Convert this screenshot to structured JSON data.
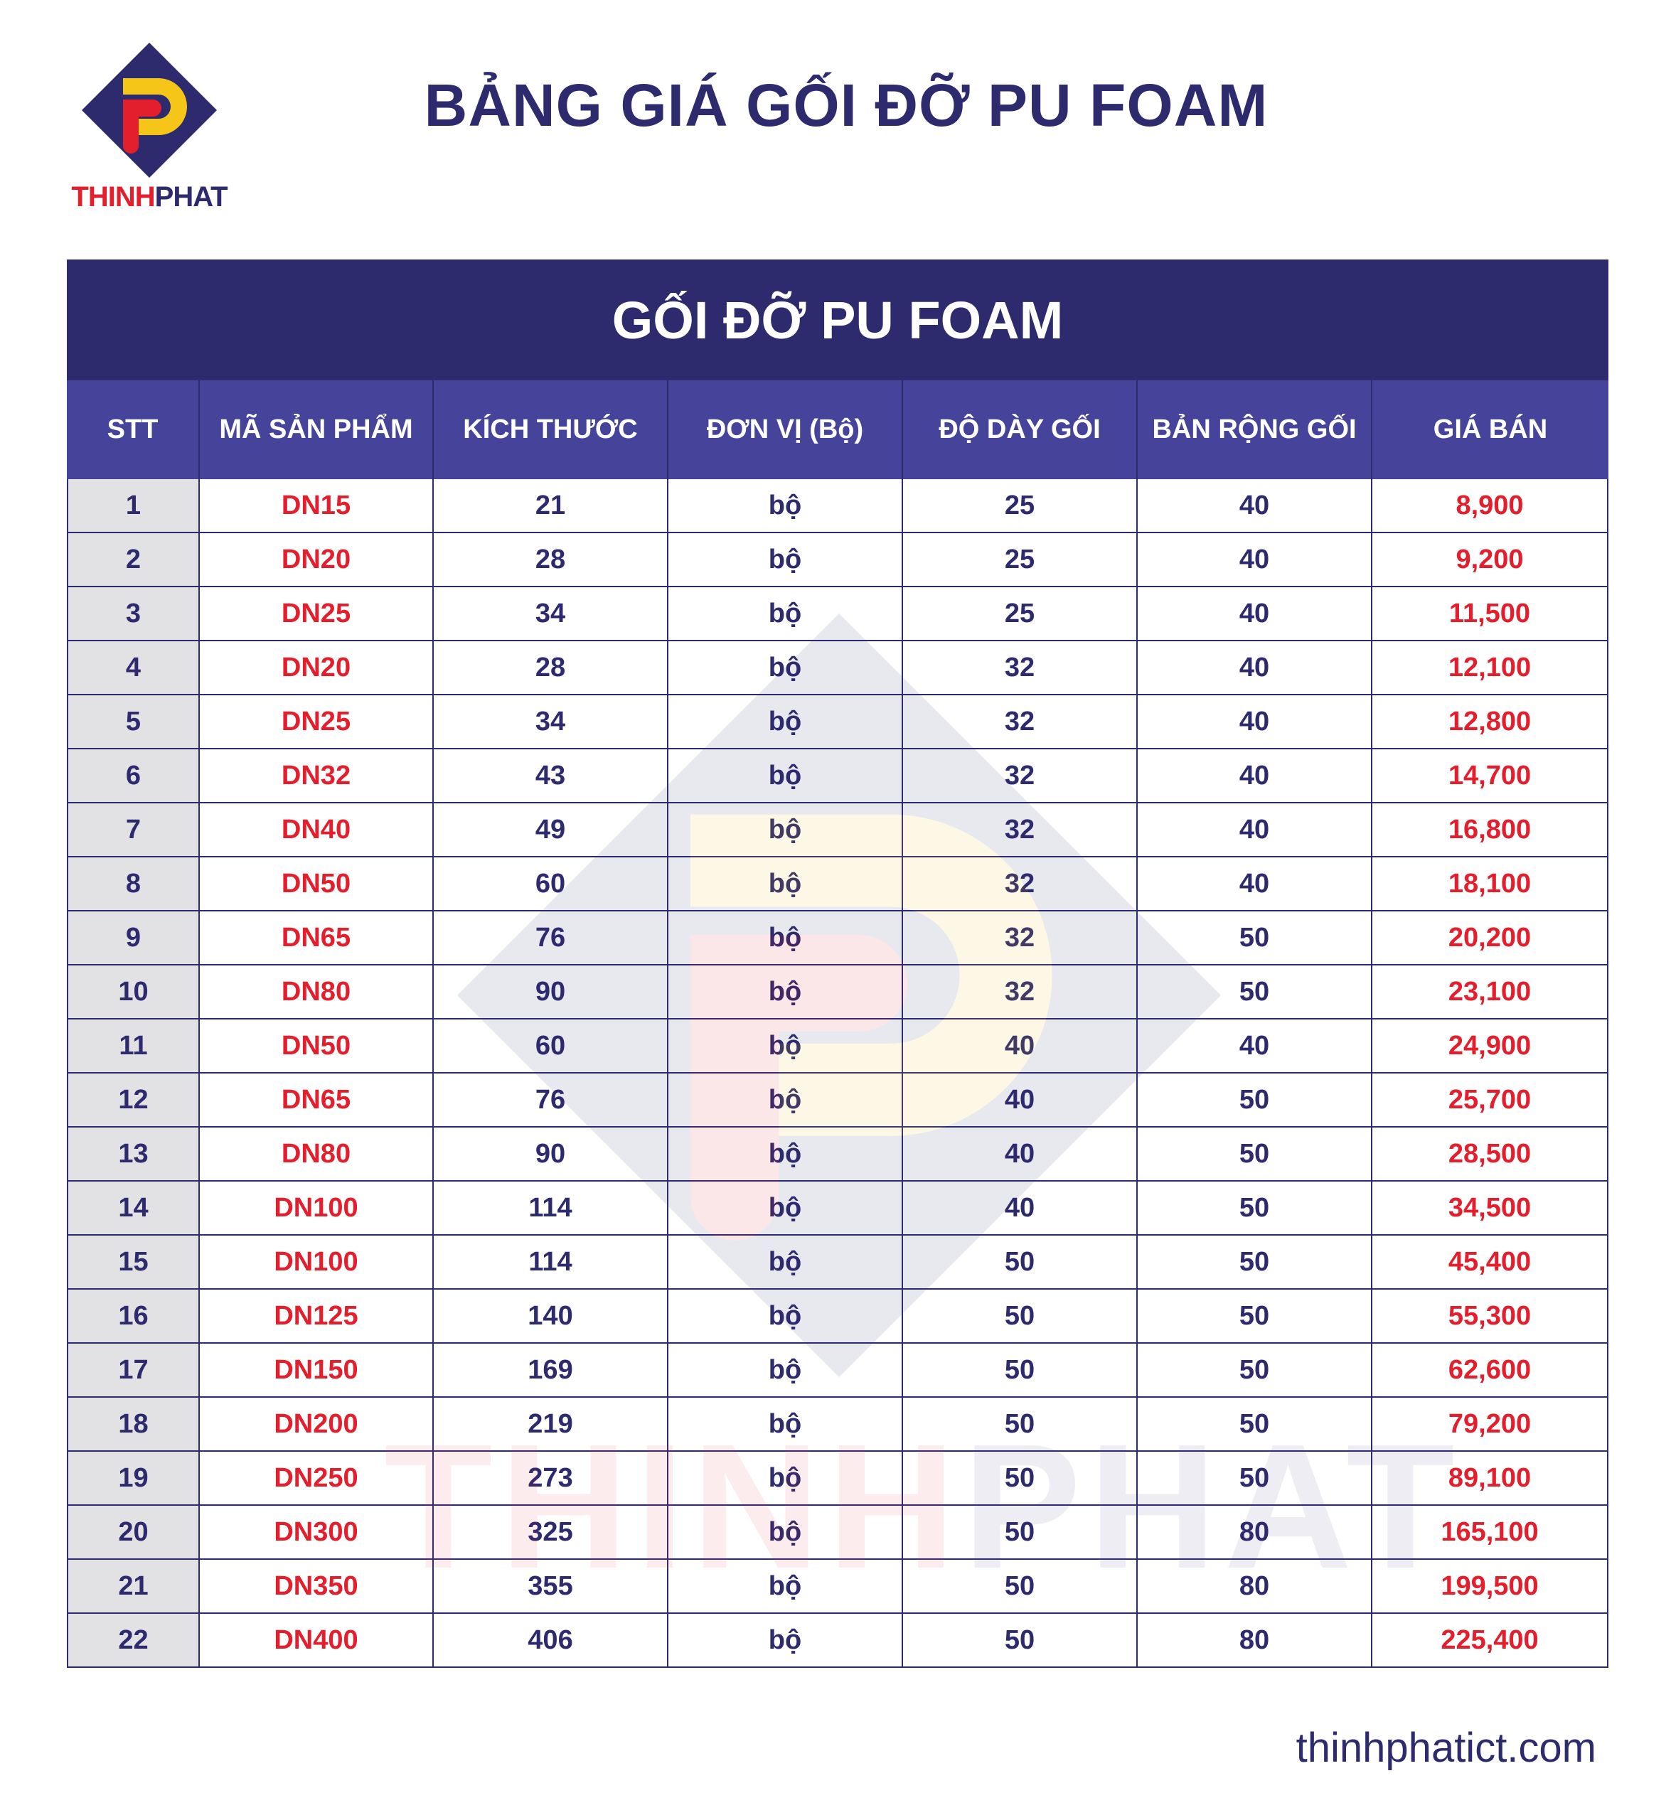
{
  "brand": {
    "name_part1": "THINH",
    "name_part2": "PHAT",
    "colors": {
      "navy": "#2d2a6e",
      "red": "#e31e2d",
      "yellow": "#f5c518",
      "header_blue": "#46449a"
    }
  },
  "page_title": "BẢNG GIÁ GỐI ĐỠ PU FOAM",
  "table": {
    "title": "GỐI ĐỠ PU FOAM",
    "columns": [
      "STT",
      "MÃ SẢN PHẨM",
      "KÍCH THƯỚC",
      "ĐƠN VỊ (Bộ)",
      "ĐỘ DÀY GỐI",
      "BẢN RỘNG GỐI",
      "GIÁ BÁN"
    ],
    "rows": [
      [
        "1",
        "DN15",
        "21",
        "bộ",
        "25",
        "40",
        "8,900"
      ],
      [
        "2",
        "DN20",
        "28",
        "bộ",
        "25",
        "40",
        "9,200"
      ],
      [
        "3",
        "DN25",
        "34",
        "bộ",
        "25",
        "40",
        "11,500"
      ],
      [
        "4",
        "DN20",
        "28",
        "bộ",
        "32",
        "40",
        "12,100"
      ],
      [
        "5",
        "DN25",
        "34",
        "bộ",
        "32",
        "40",
        "12,800"
      ],
      [
        "6",
        "DN32",
        "43",
        "bộ",
        "32",
        "40",
        "14,700"
      ],
      [
        "7",
        "DN40",
        "49",
        "bộ",
        "32",
        "40",
        "16,800"
      ],
      [
        "8",
        "DN50",
        "60",
        "bộ",
        "32",
        "40",
        "18,100"
      ],
      [
        "9",
        "DN65",
        "76",
        "bộ",
        "32",
        "50",
        "20,200"
      ],
      [
        "10",
        "DN80",
        "90",
        "bộ",
        "32",
        "50",
        "23,100"
      ],
      [
        "11",
        "DN50",
        "60",
        "bộ",
        "40",
        "40",
        "24,900"
      ],
      [
        "12",
        "DN65",
        "76",
        "bộ",
        "40",
        "50",
        "25,700"
      ],
      [
        "13",
        "DN80",
        "90",
        "bộ",
        "40",
        "50",
        "28,500"
      ],
      [
        "14",
        "DN100",
        "114",
        "bộ",
        "40",
        "50",
        "34,500"
      ],
      [
        "15",
        "DN100",
        "114",
        "bộ",
        "50",
        "50",
        "45,400"
      ],
      [
        "16",
        "DN125",
        "140",
        "bộ",
        "50",
        "50",
        "55,300"
      ],
      [
        "17",
        "DN150",
        "169",
        "bộ",
        "50",
        "50",
        "62,600"
      ],
      [
        "18",
        "DN200",
        "219",
        "bộ",
        "50",
        "50",
        "79,200"
      ],
      [
        "19",
        "DN250",
        "273",
        "bộ",
        "50",
        "50",
        "89,100"
      ],
      [
        "20",
        "DN300",
        "325",
        "bộ",
        "50",
        "80",
        "165,100"
      ],
      [
        "21",
        "DN350",
        "355",
        "bộ",
        "50",
        "80",
        "199,500"
      ],
      [
        "22",
        "DN400",
        "406",
        "bộ",
        "50",
        "80",
        "225,400"
      ]
    ]
  },
  "footer": {
    "website": "thinhphatict.com"
  }
}
